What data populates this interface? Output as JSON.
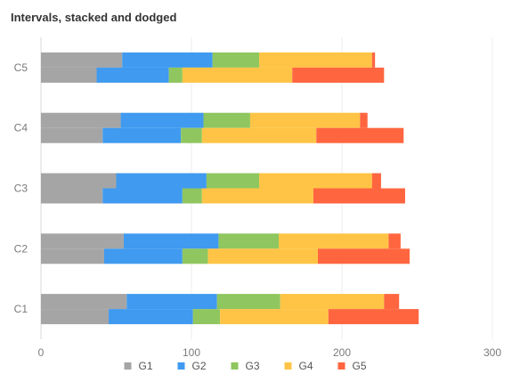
{
  "chart_data": {
    "type": "bar",
    "orientation": "horizontal",
    "stacked": true,
    "dodged": true,
    "title": "Intervals, stacked and dodged",
    "xlabel": "",
    "ylabel": "",
    "xlim": [
      0,
      300
    ],
    "x_ticks": [
      0,
      100,
      200,
      300
    ],
    "categories": [
      "C1",
      "C2",
      "C3",
      "C4",
      "C5"
    ],
    "groups": [
      "A",
      "B"
    ],
    "grid": true,
    "legend_position": "bottom",
    "series": [
      {
        "name": "G1",
        "color": "#a5a5a5",
        "values": {
          "A": [
            57,
            55,
            50,
            53,
            54
          ],
          "B": [
            45,
            42,
            41,
            41,
            37
          ]
        }
      },
      {
        "name": "G2",
        "color": "#3f9af0",
        "values": {
          "A": [
            60,
            63,
            60,
            55,
            60
          ],
          "B": [
            56,
            52,
            53,
            52,
            48
          ]
        }
      },
      {
        "name": "G3",
        "color": "#8fc65f",
        "values": {
          "A": [
            42,
            40,
            35,
            31,
            31
          ],
          "B": [
            18,
            17,
            13,
            14,
            9
          ]
        }
      },
      {
        "name": "G4",
        "color": "#ffc445",
        "values": {
          "A": [
            69,
            73,
            75,
            73,
            75
          ],
          "B": [
            72,
            73,
            74,
            76,
            73
          ]
        }
      },
      {
        "name": "G5",
        "color": "#ff6640",
        "values": {
          "A": [
            10,
            8,
            6,
            5,
            2
          ],
          "B": [
            60,
            61,
            61,
            58,
            61
          ]
        }
      }
    ]
  }
}
